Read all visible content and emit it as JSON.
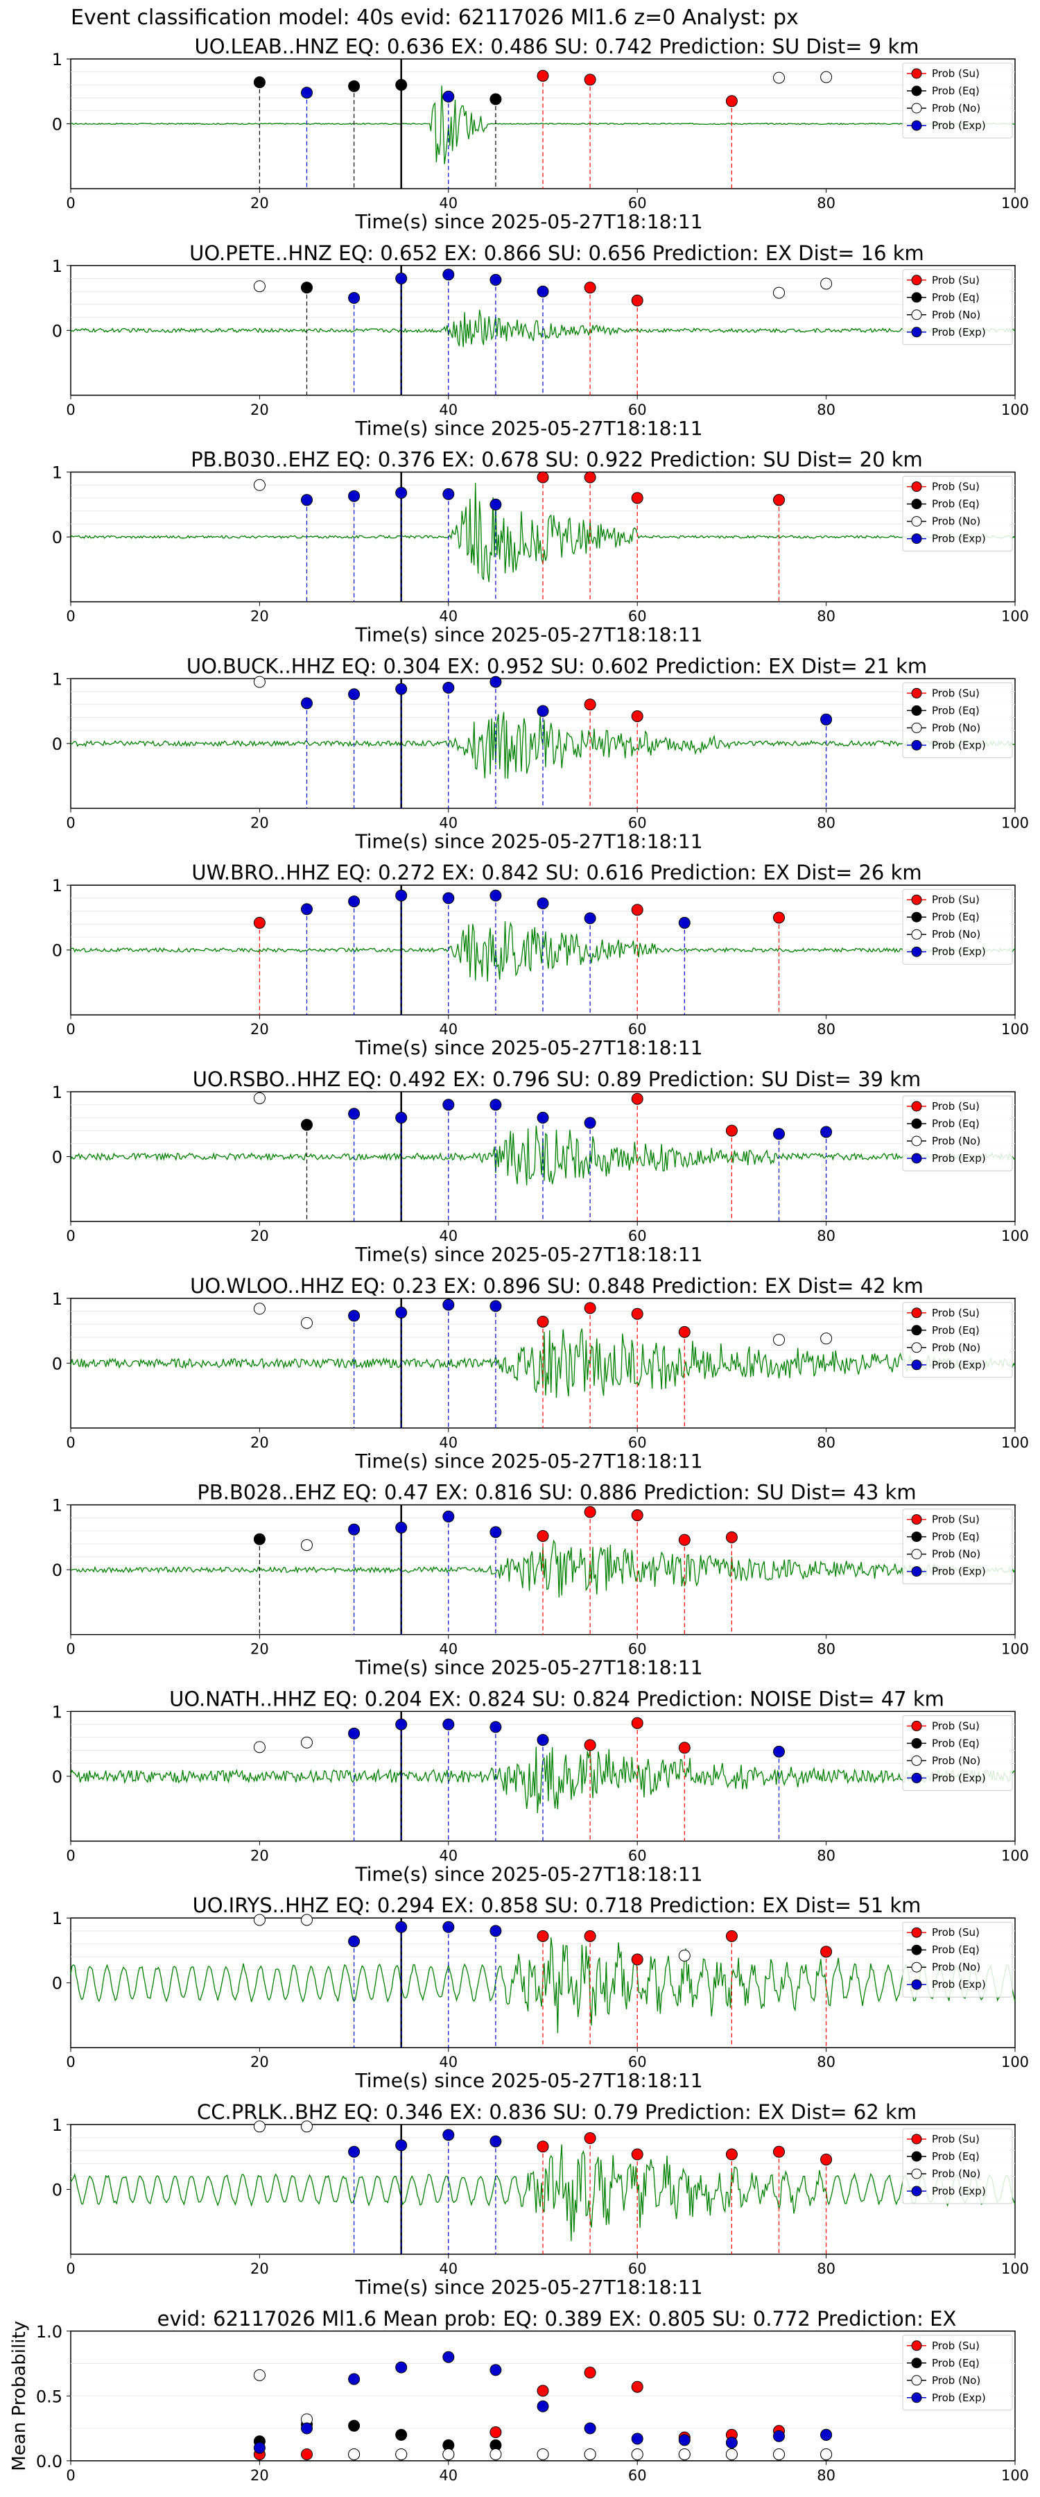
{
  "figure": {
    "title": "Event classification model: 40s evid: 62117026 Ml1.6 z=0 Analyst: px",
    "xlabel": "Time(s) since 2025-05-27T18:18:11"
  },
  "legend_labels": [
    "Prob (Su)",
    "Prob (Eq)",
    "Prob (No)",
    "Prob (Exp)"
  ],
  "colors": {
    "su": "#ff0000",
    "eq": "#000000",
    "no": "#ffffff",
    "exp": "#0000cc",
    "waveform": "#008000"
  },
  "x_ticks": [
    "0",
    "20",
    "40",
    "60",
    "80",
    "100"
  ],
  "chart_data": [
    {
      "type": "scatter",
      "title": "UO.LEAB..HNZ   EQ: 0.636  EX: 0.486  SU: 0.742   Prediction: SU    Dist= 9 km",
      "xlim": [
        0,
        100
      ],
      "ylim": [
        -1,
        1
      ],
      "yticks": [
        "1",
        "0"
      ],
      "pick_time": 35,
      "noise_amp": 0.01,
      "signal_amp": 0.8,
      "signal_start": 38,
      "signal_end": 44,
      "markers": [
        {
          "x": 20,
          "y": 0.64,
          "cls": "eq"
        },
        {
          "x": 25,
          "y": 0.48,
          "cls": "exp"
        },
        {
          "x": 30,
          "y": 0.58,
          "cls": "eq"
        },
        {
          "x": 35,
          "y": 0.6,
          "cls": "eq"
        },
        {
          "x": 40,
          "y": 0.42,
          "cls": "exp"
        },
        {
          "x": 45,
          "y": 0.38,
          "cls": "eq"
        },
        {
          "x": 50,
          "y": 0.74,
          "cls": "su"
        },
        {
          "x": 55,
          "y": 0.68,
          "cls": "su"
        },
        {
          "x": 70,
          "y": 0.35,
          "cls": "su"
        },
        {
          "x": 75,
          "y": 0.71,
          "cls": "no"
        },
        {
          "x": 80,
          "y": 0.72,
          "cls": "no"
        }
      ]
    },
    {
      "type": "scatter",
      "title": "UO.PETE..HNZ   EQ: 0.652  EX: 0.866  SU: 0.656   Prediction: EX    Dist= 16 km",
      "xlim": [
        0,
        100
      ],
      "ylim": [
        -1,
        1
      ],
      "yticks": [
        "1",
        "0"
      ],
      "pick_time": 35,
      "noise_amp": 0.03,
      "signal_amp": 0.35,
      "signal_start": 39,
      "signal_end": 58,
      "markers": [
        {
          "x": 20,
          "y": 0.68,
          "cls": "no"
        },
        {
          "x": 25,
          "y": 0.66,
          "cls": "eq"
        },
        {
          "x": 30,
          "y": 0.5,
          "cls": "exp"
        },
        {
          "x": 35,
          "y": 0.8,
          "cls": "exp"
        },
        {
          "x": 40,
          "y": 0.86,
          "cls": "exp"
        },
        {
          "x": 45,
          "y": 0.78,
          "cls": "exp"
        },
        {
          "x": 50,
          "y": 0.6,
          "cls": "exp"
        },
        {
          "x": 55,
          "y": 0.66,
          "cls": "su"
        },
        {
          "x": 60,
          "y": 0.46,
          "cls": "su"
        },
        {
          "x": 75,
          "y": 0.58,
          "cls": "no"
        },
        {
          "x": 80,
          "y": 0.72,
          "cls": "no"
        }
      ]
    },
    {
      "type": "scatter",
      "title": "PB.B030..EHZ   EQ: 0.376  EX: 0.678  SU: 0.922   Prediction: SU    Dist= 20 km",
      "xlim": [
        0,
        100
      ],
      "ylim": [
        -1,
        1
      ],
      "yticks": [
        "1",
        "0"
      ],
      "pick_time": 35,
      "noise_amp": 0.02,
      "signal_amp": 0.9,
      "signal_start": 40,
      "signal_end": 60,
      "markers": [
        {
          "x": 20,
          "y": 0.8,
          "cls": "no"
        },
        {
          "x": 25,
          "y": 0.57,
          "cls": "exp"
        },
        {
          "x": 30,
          "y": 0.63,
          "cls": "exp"
        },
        {
          "x": 35,
          "y": 0.68,
          "cls": "exp"
        },
        {
          "x": 40,
          "y": 0.66,
          "cls": "exp"
        },
        {
          "x": 45,
          "y": 0.5,
          "cls": "exp"
        },
        {
          "x": 50,
          "y": 0.92,
          "cls": "su"
        },
        {
          "x": 55,
          "y": 0.92,
          "cls": "su"
        },
        {
          "x": 60,
          "y": 0.6,
          "cls": "su"
        },
        {
          "x": 75,
          "y": 0.57,
          "cls": "su"
        }
      ]
    },
    {
      "type": "scatter",
      "title": "UO.BUCK..HHZ   EQ: 0.304  EX: 0.952  SU: 0.602   Prediction: EX    Dist= 21 km",
      "xlim": [
        0,
        100
      ],
      "ylim": [
        -1,
        1
      ],
      "yticks": [
        "1",
        "0"
      ],
      "pick_time": 35,
      "noise_amp": 0.04,
      "signal_amp": 0.6,
      "signal_start": 40,
      "signal_end": 70,
      "markers": [
        {
          "x": 20,
          "y": 0.95,
          "cls": "no"
        },
        {
          "x": 25,
          "y": 0.62,
          "cls": "exp"
        },
        {
          "x": 30,
          "y": 0.76,
          "cls": "exp"
        },
        {
          "x": 35,
          "y": 0.84,
          "cls": "exp"
        },
        {
          "x": 40,
          "y": 0.86,
          "cls": "exp"
        },
        {
          "x": 45,
          "y": 0.95,
          "cls": "exp"
        },
        {
          "x": 50,
          "y": 0.5,
          "cls": "exp"
        },
        {
          "x": 55,
          "y": 0.6,
          "cls": "su"
        },
        {
          "x": 60,
          "y": 0.42,
          "cls": "su"
        },
        {
          "x": 80,
          "y": 0.37,
          "cls": "exp"
        }
      ]
    },
    {
      "type": "scatter",
      "title": "UW.BRO..HHZ   EQ: 0.272  EX: 0.842  SU: 0.616   Prediction: EX    Dist= 26 km",
      "xlim": [
        0,
        100
      ],
      "ylim": [
        -1,
        1
      ],
      "yticks": [
        "1",
        "0"
      ],
      "pick_time": 35,
      "noise_amp": 0.03,
      "signal_amp": 0.65,
      "signal_start": 40,
      "signal_end": 62,
      "markers": [
        {
          "x": 20,
          "y": 0.42,
          "cls": "su"
        },
        {
          "x": 25,
          "y": 0.63,
          "cls": "exp"
        },
        {
          "x": 30,
          "y": 0.75,
          "cls": "exp"
        },
        {
          "x": 35,
          "y": 0.84,
          "cls": "exp"
        },
        {
          "x": 40,
          "y": 0.8,
          "cls": "exp"
        },
        {
          "x": 45,
          "y": 0.84,
          "cls": "exp"
        },
        {
          "x": 50,
          "y": 0.72,
          "cls": "exp"
        },
        {
          "x": 55,
          "y": 0.49,
          "cls": "exp"
        },
        {
          "x": 60,
          "y": 0.62,
          "cls": "su"
        },
        {
          "x": 65,
          "y": 0.42,
          "cls": "exp"
        },
        {
          "x": 75,
          "y": 0.5,
          "cls": "su"
        }
      ]
    },
    {
      "type": "scatter",
      "title": "UO.RSBO..HHZ   EQ: 0.492  EX: 0.796  SU: 0.89   Prediction: SU    Dist= 39 km",
      "xlim": [
        0,
        100
      ],
      "ylim": [
        -1,
        1
      ],
      "yticks": [
        "1",
        "0"
      ],
      "pick_time": 35,
      "noise_amp": 0.05,
      "signal_amp": 0.55,
      "signal_start": 43,
      "signal_end": 75,
      "markers": [
        {
          "x": 20,
          "y": 0.9,
          "cls": "no"
        },
        {
          "x": 25,
          "y": 0.49,
          "cls": "eq"
        },
        {
          "x": 30,
          "y": 0.66,
          "cls": "exp"
        },
        {
          "x": 35,
          "y": 0.6,
          "cls": "exp"
        },
        {
          "x": 40,
          "y": 0.8,
          "cls": "exp"
        },
        {
          "x": 45,
          "y": 0.8,
          "cls": "exp"
        },
        {
          "x": 50,
          "y": 0.6,
          "cls": "exp"
        },
        {
          "x": 55,
          "y": 0.52,
          "cls": "exp"
        },
        {
          "x": 60,
          "y": 0.89,
          "cls": "su"
        },
        {
          "x": 70,
          "y": 0.4,
          "cls": "su"
        },
        {
          "x": 75,
          "y": 0.35,
          "cls": "exp"
        },
        {
          "x": 80,
          "y": 0.38,
          "cls": "exp"
        }
      ]
    },
    {
      "type": "scatter",
      "title": "UO.WLOO..HHZ   EQ: 0.23  EX: 0.896  SU: 0.848   Prediction: EX    Dist= 42 km",
      "xlim": [
        0,
        100
      ],
      "ylim": [
        -1,
        1
      ],
      "yticks": [
        "1",
        "0"
      ],
      "pick_time": 35,
      "noise_amp": 0.07,
      "signal_amp": 0.6,
      "signal_start": 44,
      "signal_end": 92,
      "markers": [
        {
          "x": 20,
          "y": 0.84,
          "cls": "no"
        },
        {
          "x": 25,
          "y": 0.62,
          "cls": "no"
        },
        {
          "x": 30,
          "y": 0.73,
          "cls": "exp"
        },
        {
          "x": 35,
          "y": 0.78,
          "cls": "exp"
        },
        {
          "x": 40,
          "y": 0.9,
          "cls": "exp"
        },
        {
          "x": 45,
          "y": 0.88,
          "cls": "exp"
        },
        {
          "x": 50,
          "y": 0.64,
          "cls": "su"
        },
        {
          "x": 55,
          "y": 0.85,
          "cls": "su"
        },
        {
          "x": 60,
          "y": 0.76,
          "cls": "su"
        },
        {
          "x": 65,
          "y": 0.48,
          "cls": "su"
        },
        {
          "x": 75,
          "y": 0.36,
          "cls": "no"
        },
        {
          "x": 80,
          "y": 0.38,
          "cls": "no"
        }
      ]
    },
    {
      "type": "scatter",
      "title": "PB.B028..EHZ   EQ: 0.47  EX: 0.816  SU: 0.886   Prediction: SU    Dist= 43 km",
      "xlim": [
        0,
        100
      ],
      "ylim": [
        -1,
        1
      ],
      "yticks": [
        "1",
        "0"
      ],
      "pick_time": 35,
      "noise_amp": 0.04,
      "signal_amp": 0.5,
      "signal_start": 44,
      "signal_end": 92,
      "markers": [
        {
          "x": 20,
          "y": 0.47,
          "cls": "eq"
        },
        {
          "x": 25,
          "y": 0.38,
          "cls": "no"
        },
        {
          "x": 30,
          "y": 0.62,
          "cls": "exp"
        },
        {
          "x": 35,
          "y": 0.65,
          "cls": "exp"
        },
        {
          "x": 40,
          "y": 0.82,
          "cls": "exp"
        },
        {
          "x": 45,
          "y": 0.58,
          "cls": "exp"
        },
        {
          "x": 50,
          "y": 0.52,
          "cls": "su"
        },
        {
          "x": 55,
          "y": 0.89,
          "cls": "su"
        },
        {
          "x": 60,
          "y": 0.84,
          "cls": "su"
        },
        {
          "x": 65,
          "y": 0.46,
          "cls": "su"
        },
        {
          "x": 70,
          "y": 0.5,
          "cls": "su"
        }
      ]
    },
    {
      "type": "scatter",
      "title": "UO.NATH..HHZ   EQ: 0.204  EX: 0.824  SU: 0.824   Prediction: NOISE    Dist= 47 km",
      "xlim": [
        0,
        100
      ],
      "ylim": [
        -1,
        1
      ],
      "yticks": [
        "1",
        "0"
      ],
      "pick_time": 35,
      "noise_amp": 0.1,
      "signal_amp": 0.55,
      "signal_start": 44,
      "signal_end": 80,
      "markers": [
        {
          "x": 20,
          "y": 0.45,
          "cls": "no"
        },
        {
          "x": 25,
          "y": 0.52,
          "cls": "no"
        },
        {
          "x": 30,
          "y": 0.66,
          "cls": "exp"
        },
        {
          "x": 35,
          "y": 0.8,
          "cls": "exp"
        },
        {
          "x": 40,
          "y": 0.8,
          "cls": "exp"
        },
        {
          "x": 45,
          "y": 0.76,
          "cls": "exp"
        },
        {
          "x": 50,
          "y": 0.56,
          "cls": "exp"
        },
        {
          "x": 55,
          "y": 0.48,
          "cls": "su"
        },
        {
          "x": 60,
          "y": 0.82,
          "cls": "su"
        },
        {
          "x": 65,
          "y": 0.44,
          "cls": "su"
        },
        {
          "x": 75,
          "y": 0.38,
          "cls": "exp"
        }
      ]
    },
    {
      "type": "scatter",
      "title": "UO.IRYS..HHZ   EQ: 0.294  EX: 0.858  SU: 0.718   Prediction: EX    Dist= 51 km",
      "xlim": [
        0,
        100
      ],
      "ylim": [
        -1,
        1
      ],
      "yticks": [
        "1",
        "0"
      ],
      "pick_time": 35,
      "noise_amp": 0.3,
      "signal_amp": 0.6,
      "signal_start": 45,
      "signal_end": 85,
      "markers": [
        {
          "x": 20,
          "y": 0.97,
          "cls": "no"
        },
        {
          "x": 25,
          "y": 0.97,
          "cls": "no"
        },
        {
          "x": 30,
          "y": 0.64,
          "cls": "exp"
        },
        {
          "x": 35,
          "y": 0.86,
          "cls": "exp"
        },
        {
          "x": 40,
          "y": 0.86,
          "cls": "exp"
        },
        {
          "x": 45,
          "y": 0.8,
          "cls": "exp"
        },
        {
          "x": 50,
          "y": 0.72,
          "cls": "su"
        },
        {
          "x": 55,
          "y": 0.72,
          "cls": "su"
        },
        {
          "x": 60,
          "y": 0.36,
          "cls": "su"
        },
        {
          "x": 65,
          "y": 0.42,
          "cls": "no"
        },
        {
          "x": 70,
          "y": 0.72,
          "cls": "su"
        },
        {
          "x": 80,
          "y": 0.48,
          "cls": "su"
        }
      ]
    },
    {
      "type": "scatter",
      "title": "CC.PRLK..BHZ   EQ: 0.346  EX: 0.836  SU: 0.79   Prediction: EX    Dist= 62 km",
      "xlim": [
        0,
        100
      ],
      "ylim": [
        -1,
        1
      ],
      "yticks": [
        "1",
        "0"
      ],
      "pick_time": 35,
      "noise_amp": 0.25,
      "signal_amp": 0.7,
      "signal_start": 47,
      "signal_end": 80,
      "markers": [
        {
          "x": 20,
          "y": 0.97,
          "cls": "no"
        },
        {
          "x": 25,
          "y": 0.97,
          "cls": "no"
        },
        {
          "x": 30,
          "y": 0.58,
          "cls": "exp"
        },
        {
          "x": 35,
          "y": 0.68,
          "cls": "exp"
        },
        {
          "x": 40,
          "y": 0.84,
          "cls": "exp"
        },
        {
          "x": 45,
          "y": 0.74,
          "cls": "exp"
        },
        {
          "x": 50,
          "y": 0.66,
          "cls": "su"
        },
        {
          "x": 55,
          "y": 0.79,
          "cls": "su"
        },
        {
          "x": 60,
          "y": 0.54,
          "cls": "su"
        },
        {
          "x": 70,
          "y": 0.54,
          "cls": "su"
        },
        {
          "x": 75,
          "y": 0.58,
          "cls": "su"
        },
        {
          "x": 80,
          "y": 0.46,
          "cls": "su"
        }
      ]
    },
    {
      "type": "scatter",
      "title": "evid: 62117026  Ml1.6   Mean prob:   EQ: 0.389  EX: 0.805  SU: 0.772   Prediction: EX",
      "ylabel": "Mean Probability",
      "xlim": [
        0,
        100
      ],
      "ylim": [
        0,
        1
      ],
      "yticks": [
        "0.0",
        "0.5",
        "1.0"
      ],
      "x": [
        20,
        25,
        30,
        35,
        40,
        45,
        50,
        55,
        60,
        65,
        70,
        75,
        80
      ],
      "series": [
        {
          "name": "Prob (Su)",
          "cls": "su",
          "values": [
            0.05,
            0.05,
            0.05,
            0.05,
            0.05,
            0.22,
            0.54,
            0.68,
            0.57,
            0.18,
            0.2,
            0.23,
            0.2
          ]
        },
        {
          "name": "Prob (Eq)",
          "cls": "eq",
          "values": [
            0.15,
            0.28,
            0.27,
            0.2,
            0.12,
            0.12,
            0.05,
            0.05,
            0.05,
            0.05,
            0.05,
            0.05,
            0.05
          ]
        },
        {
          "name": "Prob (No)",
          "cls": "no",
          "values": [
            0.66,
            0.32,
            0.05,
            0.05,
            0.05,
            0.05,
            0.05,
            0.05,
            0.05,
            0.05,
            0.05,
            0.05,
            0.05
          ]
        },
        {
          "name": "Prob (Exp)",
          "cls": "exp",
          "values": [
            0.1,
            0.25,
            0.63,
            0.72,
            0.8,
            0.7,
            0.42,
            0.25,
            0.17,
            0.16,
            0.14,
            0.19,
            0.2
          ]
        }
      ]
    }
  ]
}
